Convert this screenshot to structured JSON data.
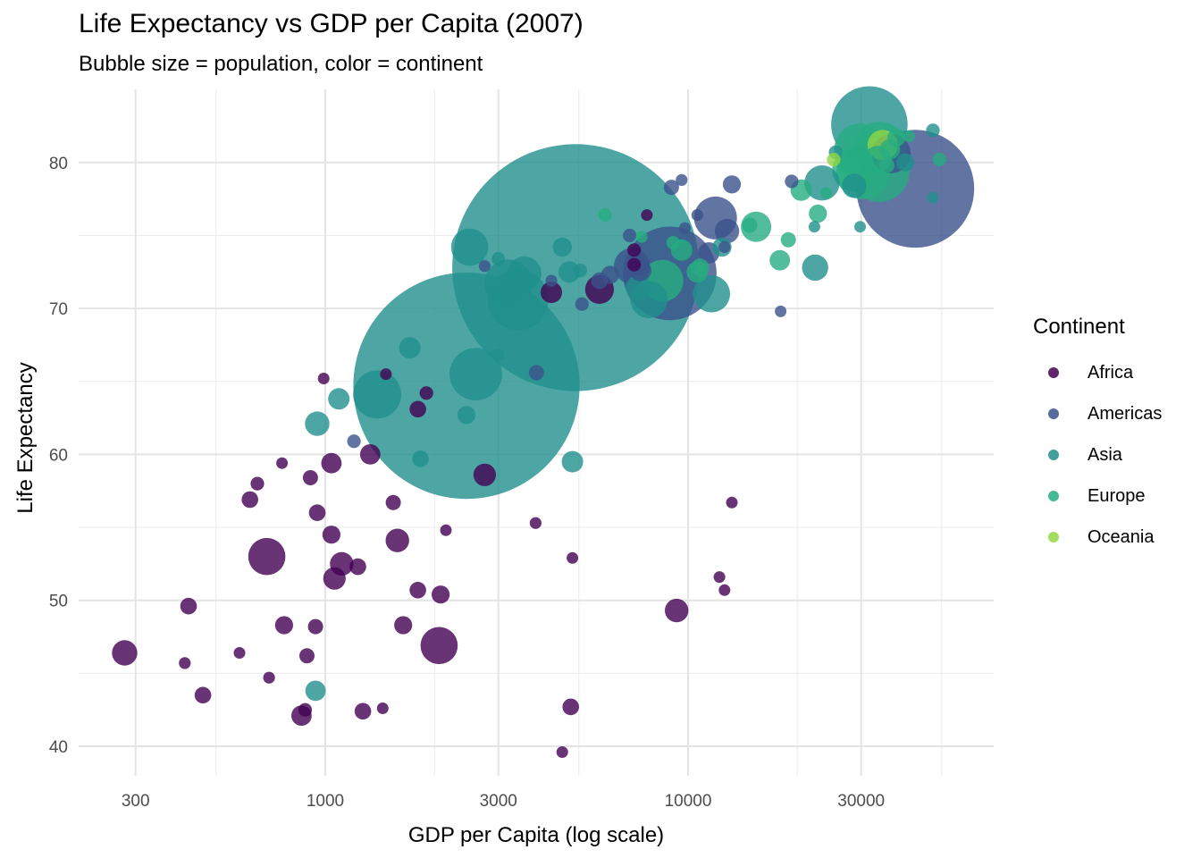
{
  "chart_data": {
    "type": "scatter",
    "title": "Life Expectancy vs GDP per Capita (2007)",
    "subtitle": "Bubble size = population, color = continent",
    "xlabel": "GDP per Capita (log scale)",
    "ylabel": "Life Expectancy",
    "x_scale": "log",
    "xlim": [
      200,
      60000
    ],
    "ylim": [
      38,
      84
    ],
    "x_ticks": [
      300,
      1000,
      3000,
      10000,
      30000
    ],
    "x_tick_labels": [
      "300",
      "1000",
      "3000",
      "10000",
      "30000"
    ],
    "y_ticks": [
      40,
      50,
      60,
      70,
      80
    ],
    "y_tick_labels": [
      "40",
      "50",
      "60",
      "70",
      "80"
    ],
    "grid": true,
    "legend": {
      "title": "Continent",
      "position": "right"
    },
    "colors": {
      "Africa": "#440154",
      "Americas": "#3b528b",
      "Asia": "#21908c",
      "Europe": "#27ad81",
      "Oceania": "#8fd744"
    },
    "series": [
      {
        "name": "Africa",
        "points": [
          {
            "x": 280,
            "y": 46.4,
            "pop": 14
          },
          {
            "x": 420,
            "y": 49.6,
            "pop": 6
          },
          {
            "x": 410,
            "y": 45.7,
            "pop": 3
          },
          {
            "x": 460,
            "y": 43.5,
            "pop": 6
          },
          {
            "x": 580,
            "y": 46.4,
            "pop": 2
          },
          {
            "x": 620,
            "y": 56.9,
            "pop": 6
          },
          {
            "x": 650,
            "y": 58.0,
            "pop": 4
          },
          {
            "x": 690,
            "y": 53.0,
            "pop": 30
          },
          {
            "x": 700,
            "y": 44.7,
            "pop": 3
          },
          {
            "x": 760,
            "y": 59.4,
            "pop": 2
          },
          {
            "x": 770,
            "y": 48.3,
            "pop": 7
          },
          {
            "x": 860,
            "y": 42.1,
            "pop": 9
          },
          {
            "x": 880,
            "y": 42.5,
            "pop": 4
          },
          {
            "x": 890,
            "y": 46.2,
            "pop": 5
          },
          {
            "x": 910,
            "y": 58.4,
            "pop": 5
          },
          {
            "x": 940,
            "y": 48.2,
            "pop": 5
          },
          {
            "x": 950,
            "y": 56.0,
            "pop": 6
          },
          {
            "x": 990,
            "y": 65.2,
            "pop": 2
          },
          {
            "x": 1040,
            "y": 59.4,
            "pop": 9
          },
          {
            "x": 1040,
            "y": 54.5,
            "pop": 7
          },
          {
            "x": 1060,
            "y": 51.5,
            "pop": 11
          },
          {
            "x": 1110,
            "y": 52.5,
            "pop": 12
          },
          {
            "x": 1230,
            "y": 52.3,
            "pop": 6
          },
          {
            "x": 1270,
            "y": 42.4,
            "pop": 6
          },
          {
            "x": 1330,
            "y": 60.0,
            "pop": 9
          },
          {
            "x": 1440,
            "y": 42.6,
            "pop": 2
          },
          {
            "x": 1470,
            "y": 65.5,
            "pop": 1
          },
          {
            "x": 1540,
            "y": 56.7,
            "pop": 5
          },
          {
            "x": 1580,
            "y": 54.1,
            "pop": 12
          },
          {
            "x": 1640,
            "y": 48.3,
            "pop": 7
          },
          {
            "x": 1800,
            "y": 50.7,
            "pop": 6
          },
          {
            "x": 1800,
            "y": 63.1,
            "pop": 6
          },
          {
            "x": 1900,
            "y": 64.2,
            "pop": 4
          },
          {
            "x": 2060,
            "y": 46.9,
            "pop": 30
          },
          {
            "x": 2080,
            "y": 50.4,
            "pop": 7
          },
          {
            "x": 2150,
            "y": 54.8,
            "pop": 1
          },
          {
            "x": 2750,
            "y": 58.6,
            "pop": 11
          },
          {
            "x": 3800,
            "y": 55.3,
            "pop": 3
          },
          {
            "x": 4200,
            "y": 71.1,
            "pop": 10
          },
          {
            "x": 4500,
            "y": 39.6,
            "pop": 2
          },
          {
            "x": 4750,
            "y": 42.7,
            "pop": 6
          },
          {
            "x": 4800,
            "y": 52.9,
            "pop": 2
          },
          {
            "x": 5700,
            "y": 71.3,
            "pop": 18
          },
          {
            "x": 7100,
            "y": 74.0,
            "pop": 4
          },
          {
            "x": 7100,
            "y": 73.0,
            "pop": 4
          },
          {
            "x": 7700,
            "y": 76.4,
            "pop": 1
          },
          {
            "x": 9300,
            "y": 49.3,
            "pop": 12
          },
          {
            "x": 12200,
            "y": 51.6,
            "pop": 1
          },
          {
            "x": 12600,
            "y": 50.7,
            "pop": 2
          },
          {
            "x": 13200,
            "y": 56.7,
            "pop": 1
          }
        ]
      },
      {
        "name": "Americas",
        "points": [
          {
            "x": 1200,
            "y": 60.9,
            "pop": 4
          },
          {
            "x": 2750,
            "y": 72.9,
            "pop": 3
          },
          {
            "x": 3820,
            "y": 65.6,
            "pop": 5
          },
          {
            "x": 4200,
            "y": 71.9,
            "pop": 3
          },
          {
            "x": 5100,
            "y": 70.3,
            "pop": 4
          },
          {
            "x": 5700,
            "y": 71.9,
            "pop": 6
          },
          {
            "x": 6100,
            "y": 72.3,
            "pop": 7
          },
          {
            "x": 6900,
            "y": 75.0,
            "pop": 4
          },
          {
            "x": 7000,
            "y": 72.9,
            "pop": 28
          },
          {
            "x": 7400,
            "y": 72.6,
            "pop": 10
          },
          {
            "x": 8900,
            "y": 72.4,
            "pop": 190
          },
          {
            "x": 9000,
            "y": 78.3,
            "pop": 5
          },
          {
            "x": 9600,
            "y": 78.8,
            "pop": 3
          },
          {
            "x": 9800,
            "y": 75.5,
            "pop": 3
          },
          {
            "x": 10600,
            "y": 76.4,
            "pop": 3
          },
          {
            "x": 11400,
            "y": 73.8,
            "pop": 10
          },
          {
            "x": 11900,
            "y": 76.2,
            "pop": 40
          },
          {
            "x": 12600,
            "y": 74.2,
            "pop": 3
          },
          {
            "x": 12800,
            "y": 75.3,
            "pop": 13
          },
          {
            "x": 13200,
            "y": 78.5,
            "pop": 7
          },
          {
            "x": 18000,
            "y": 69.8,
            "pop": 1
          },
          {
            "x": 19300,
            "y": 78.7,
            "pop": 4
          },
          {
            "x": 36300,
            "y": 80.6,
            "pop": 33
          },
          {
            "x": 42300,
            "y": 78.2,
            "pop": 301
          }
        ]
      },
      {
        "name": "Asia",
        "points": [
          {
            "x": 940,
            "y": 43.8,
            "pop": 9
          },
          {
            "x": 950,
            "y": 62.1,
            "pop": 13
          },
          {
            "x": 1090,
            "y": 63.8,
            "pop": 10
          },
          {
            "x": 1390,
            "y": 64.1,
            "pop": 50
          },
          {
            "x": 1710,
            "y": 67.3,
            "pop": 10
          },
          {
            "x": 1830,
            "y": 59.7,
            "pop": 6
          },
          {
            "x": 2450,
            "y": 62.7,
            "pop": 7
          },
          {
            "x": 2450,
            "y": 64.7,
            "pop": 1110
          },
          {
            "x": 2500,
            "y": 74.2,
            "pop": 30
          },
          {
            "x": 2600,
            "y": 65.5,
            "pop": 60
          },
          {
            "x": 3000,
            "y": 73.4,
            "pop": 4
          },
          {
            "x": 3000,
            "y": 66.8,
            "pop": 2
          },
          {
            "x": 3200,
            "y": 71.7,
            "pop": 50
          },
          {
            "x": 3400,
            "y": 70.6,
            "pop": 80
          },
          {
            "x": 3540,
            "y": 72.4,
            "pop": 25
          },
          {
            "x": 4500,
            "y": 74.2,
            "pop": 8
          },
          {
            "x": 4700,
            "y": 72.5,
            "pop": 10
          },
          {
            "x": 4800,
            "y": 59.5,
            "pop": 10
          },
          {
            "x": 4900,
            "y": 72.8,
            "pop": 1320
          },
          {
            "x": 5050,
            "y": 72.6,
            "pop": 4
          },
          {
            "x": 7300,
            "y": 71.4,
            "pop": 14
          },
          {
            "x": 7800,
            "y": 70.6,
            "pop": 30
          },
          {
            "x": 11600,
            "y": 71.0,
            "pop": 30
          },
          {
            "x": 12400,
            "y": 74.2,
            "pop": 8
          },
          {
            "x": 22300,
            "y": 75.6,
            "pop": 2
          },
          {
            "x": 22400,
            "y": 72.8,
            "pop": 15
          },
          {
            "x": 23400,
            "y": 78.6,
            "pop": 27
          },
          {
            "x": 25500,
            "y": 80.7,
            "pop": 4
          },
          {
            "x": 28700,
            "y": 78.4,
            "pop": 13
          },
          {
            "x": 29800,
            "y": 75.6,
            "pop": 1
          },
          {
            "x": 31600,
            "y": 82.6,
            "pop": 127
          },
          {
            "x": 39700,
            "y": 80.0,
            "pop": 7
          },
          {
            "x": 47300,
            "y": 82.2,
            "pop": 4
          },
          {
            "x": 47300,
            "y": 77.6,
            "pop": 2
          }
        ]
      },
      {
        "name": "Europe",
        "points": [
          {
            "x": 5900,
            "y": 76.4,
            "pop": 4
          },
          {
            "x": 7450,
            "y": 74.9,
            "pop": 3
          },
          {
            "x": 8500,
            "y": 71.9,
            "pop": 38
          },
          {
            "x": 9100,
            "y": 74.5,
            "pop": 4
          },
          {
            "x": 9600,
            "y": 74.0,
            "pop": 10
          },
          {
            "x": 10600,
            "y": 72.5,
            "pop": 10
          },
          {
            "x": 10800,
            "y": 72.8,
            "pop": 7
          },
          {
            "x": 14800,
            "y": 75.7,
            "pop": 5
          },
          {
            "x": 15400,
            "y": 75.6,
            "pop": 20
          },
          {
            "x": 17900,
            "y": 73.3,
            "pop": 9
          },
          {
            "x": 18900,
            "y": 74.7,
            "pop": 5
          },
          {
            "x": 20500,
            "y": 78.1,
            "pop": 10
          },
          {
            "x": 22800,
            "y": 76.5,
            "pop": 7
          },
          {
            "x": 24000,
            "y": 77.9,
            "pop": 2
          },
          {
            "x": 27500,
            "y": 80.0,
            "pop": 10
          },
          {
            "x": 28600,
            "y": 79.5,
            "pop": 40
          },
          {
            "x": 29800,
            "y": 80.9,
            "pop": 58
          },
          {
            "x": 30300,
            "y": 79.3,
            "pop": 61
          },
          {
            "x": 33200,
            "y": 80.2,
            "pop": 16
          },
          {
            "x": 33600,
            "y": 79.4,
            "pop": 82
          },
          {
            "x": 33800,
            "y": 81.0,
            "pop": 60
          },
          {
            "x": 35300,
            "y": 79.8,
            "pop": 5
          },
          {
            "x": 36000,
            "y": 80.9,
            "pop": 9
          },
          {
            "x": 37500,
            "y": 81.7,
            "pop": 7
          },
          {
            "x": 40700,
            "y": 81.8,
            "pop": 3
          },
          {
            "x": 49300,
            "y": 80.2,
            "pop": 4
          }
        ]
      },
      {
        "name": "Oceania",
        "points": [
          {
            "x": 25200,
            "y": 80.2,
            "pop": 4
          },
          {
            "x": 34400,
            "y": 81.2,
            "pop": 20
          }
        ]
      }
    ]
  }
}
